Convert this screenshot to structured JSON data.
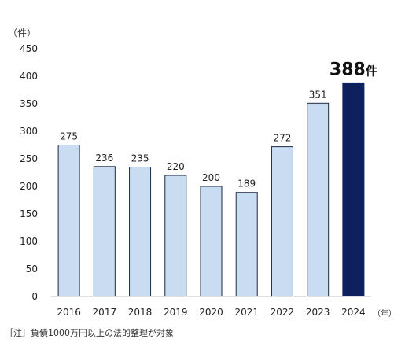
{
  "chart_data": {
    "type": "bar",
    "categories": [
      "2016",
      "2017",
      "2018",
      "2019",
      "2020",
      "2021",
      "2022",
      "2023",
      "2024"
    ],
    "values": [
      275,
      236,
      235,
      220,
      200,
      189,
      272,
      351,
      388
    ],
    "data_labels": [
      "275",
      "236",
      "235",
      "220",
      "200",
      "189",
      "272",
      "351",
      "388件"
    ],
    "ylabel": "（件）",
    "xlabel": "（年）",
    "ylim": [
      0,
      450
    ],
    "yticks": [
      0,
      50,
      100,
      150,
      200,
      250,
      300,
      350,
      400,
      450
    ],
    "grid": false,
    "footnote": "［注］負債1000万円以上の法的整理が対象",
    "colors": {
      "bar_fill": "#c9dcf2",
      "bar_stroke": "#1f2a44",
      "highlight_fill": "#0d1f5c",
      "axis": "#bfbfbf",
      "text": "#222222"
    }
  }
}
